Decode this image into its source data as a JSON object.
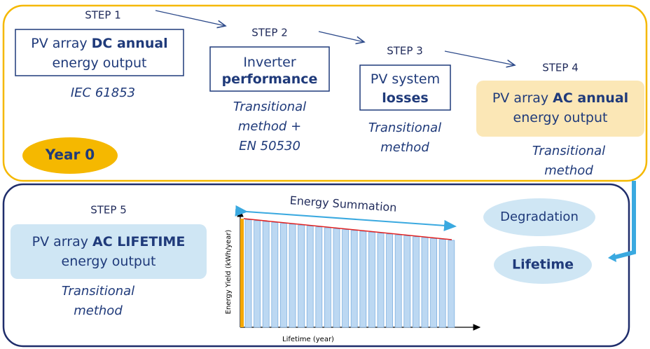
{
  "steps": [
    {
      "label": "STEP 1",
      "box": [
        [
          {
            "text": "PV array"
          },
          {
            "text": "DC annual",
            "bold": true
          }
        ],
        [
          {
            "text": "energy output"
          }
        ]
      ],
      "method": [
        "IEC 61853"
      ]
    },
    {
      "label": "STEP 2",
      "box": [
        [
          {
            "text": "Inverter"
          }
        ],
        [
          {
            "text": "performance",
            "bold": true
          }
        ]
      ],
      "method": [
        "Transitional",
        "method +",
        "EN 50530"
      ]
    },
    {
      "label": "STEP 3",
      "box": [
        [
          {
            "text": "PV system"
          }
        ],
        [
          {
            "text": "losses",
            "bold": true
          }
        ]
      ],
      "method": [
        "Transitional",
        "method"
      ]
    },
    {
      "label": "STEP 4",
      "box": [
        [
          {
            "text": "PV array"
          },
          {
            "text": "AC annual",
            "bold": true
          }
        ],
        [
          {
            "text": "energy output"
          }
        ]
      ],
      "method": [
        "Transitional",
        "method"
      ]
    },
    {
      "label": "STEP 5",
      "box": [
        [
          {
            "text": "PV array"
          },
          {
            "text": "AC LIFETIME",
            "bold": true
          }
        ],
        [
          {
            "text": "energy output"
          }
        ]
      ],
      "method": [
        "Transitional",
        "method"
      ]
    }
  ],
  "year_badge": "Year 0",
  "chart": {
    "title": "Energy Summation",
    "y_axis_label": "Energy Yield (kWh/year)",
    "x_axis_label": "Lifetime (year)"
  },
  "factors": [
    "Degradation",
    "Lifetime"
  ]
}
